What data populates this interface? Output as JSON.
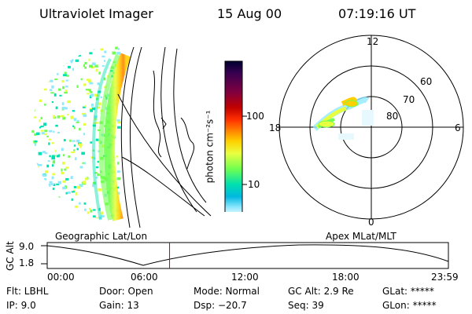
{
  "header": {
    "title": "Ultraviolet Imager",
    "date": "15 Aug 00",
    "time": "07:19:16 UT"
  },
  "colorbar": {
    "label": "photon cm⁻²s⁻¹",
    "ticks": [
      "100",
      "10"
    ],
    "colors": [
      "#000030",
      "#3a0050",
      "#800040",
      "#c00000",
      "#ff3000",
      "#ff8000",
      "#ffd000",
      "#e8ff40",
      "#70ff50",
      "#00e0b0",
      "#00b8e0",
      "#90e8ff",
      "#e8f8ff"
    ]
  },
  "globe": {
    "label": "Geographic Lat/Lon",
    "aurora_color": "#ffd000"
  },
  "polar": {
    "label": "Apex MLat/MLT",
    "mlt_labels": {
      "top": "12",
      "left": "18",
      "right": "6",
      "bottom": "0"
    },
    "mlat_labels": [
      "60",
      "70",
      "80"
    ]
  },
  "timeline": {
    "ylabel": "GC Alt",
    "yticks": [
      "9.0",
      "1.8"
    ],
    "xticks": [
      "00:00",
      "06:00",
      "12:00",
      "18:00",
      "23:59"
    ],
    "marker_fraction": 0.305,
    "marker_color": "#c00000"
  },
  "footer": {
    "col1": [
      "Flt: LBHL",
      "IP:  9.0"
    ],
    "col2": [
      "Door: Open",
      "Gain: 13"
    ],
    "col3": [
      "Mode: Normal",
      "Dsp:  −20.7"
    ],
    "col4": [
      "GC Alt: 2.9 Re",
      "Seq: 39"
    ],
    "col5": [
      "GLat: *****",
      "GLon: *****"
    ]
  }
}
